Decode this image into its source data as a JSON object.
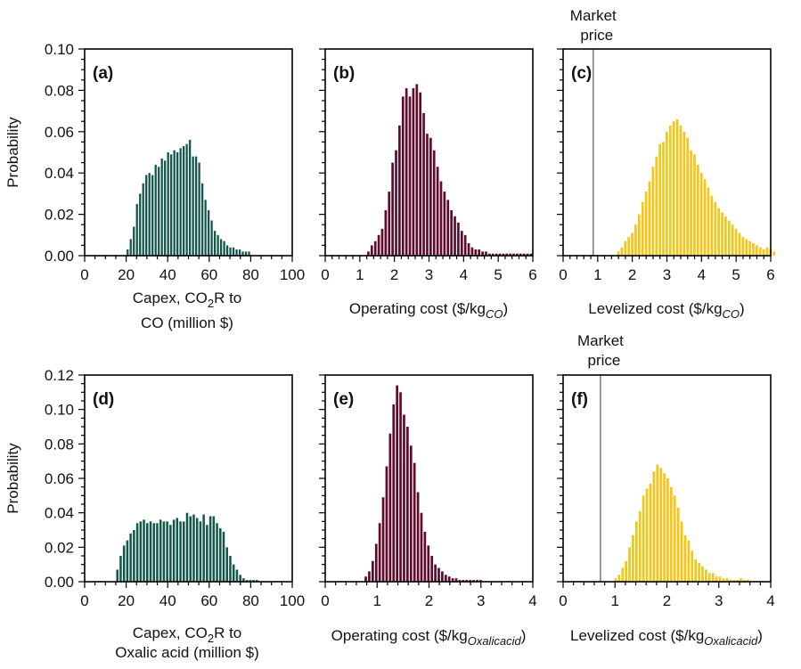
{
  "colors": {
    "capex": "#12584a",
    "opcost": "#5e0b2c",
    "levelized": "#f5c518",
    "market_line": "#7f7f7f",
    "axis": "#000000"
  },
  "chart_data": [
    {
      "type": "bar",
      "panel": "(a)",
      "xlabel_main": "Capex, CO",
      "xlabel_sub": "2",
      "xlabel_rest": "R to",
      "xlabel_line2": "CO (million $)",
      "ylabel": "Probability",
      "xlim": [
        0,
        100
      ],
      "ylim": [
        0,
        0.1
      ],
      "xticks": [
        "0",
        "20",
        "40",
        "60",
        "80",
        "100"
      ],
      "yticks": [
        "0.00",
        "0.02",
        "0.04",
        "0.06",
        "0.08",
        "0.10"
      ],
      "bin_start": 20,
      "bin_width": 1.5,
      "values": [
        0.003,
        0.008,
        0.014,
        0.025,
        0.03,
        0.035,
        0.039,
        0.04,
        0.039,
        0.044,
        0.043,
        0.047,
        0.046,
        0.05,
        0.049,
        0.051,
        0.05,
        0.052,
        0.053,
        0.054,
        0.056,
        0.048,
        0.048,
        0.045,
        0.035,
        0.027,
        0.022,
        0.017,
        0.012,
        0.01,
        0.008,
        0.007,
        0.005,
        0.004,
        0.004,
        0.003,
        0.003,
        0.002,
        0.002,
        0.002
      ]
    },
    {
      "type": "bar",
      "panel": "(b)",
      "xlabel_main": "Operating cost ($/kg",
      "xlabel_sub": "CO",
      "xlabel_rest": ")",
      "xlim": [
        0,
        6
      ],
      "ylim": [
        0,
        0.1
      ],
      "xticks": [
        "0",
        "1",
        "2",
        "3",
        "4",
        "5",
        "6"
      ],
      "bin_start": 1.2,
      "bin_width": 0.1,
      "values": [
        0.002,
        0.005,
        0.007,
        0.01,
        0.013,
        0.022,
        0.031,
        0.045,
        0.051,
        0.063,
        0.077,
        0.081,
        0.077,
        0.081,
        0.083,
        0.079,
        0.069,
        0.059,
        0.057,
        0.051,
        0.043,
        0.036,
        0.031,
        0.027,
        0.022,
        0.019,
        0.016,
        0.012,
        0.01,
        0.006,
        0.004,
        0.003,
        0.003,
        0.002,
        0.002,
        0.001,
        0.001,
        0.001,
        0.001,
        0.001,
        0.001,
        0.001,
        0.001,
        0.001,
        0.001,
        0.001,
        0.001,
        0.001
      ]
    },
    {
      "type": "bar",
      "panel": "(c)",
      "xlabel_main": "Levelized cost ($/kg",
      "xlabel_sub": "CO",
      "xlabel_rest": ")",
      "xlim": [
        0,
        6
      ],
      "ylim": [
        0,
        0.1
      ],
      "xticks": [
        "0",
        "1",
        "2",
        "3",
        "4",
        "5",
        "6"
      ],
      "market_price": 0.87,
      "market_label_line1": "Market",
      "market_label_line2": "price",
      "bin_start": 1.55,
      "bin_width": 0.1,
      "values": [
        0.002,
        0.004,
        0.007,
        0.009,
        0.011,
        0.015,
        0.02,
        0.026,
        0.031,
        0.036,
        0.043,
        0.048,
        0.054,
        0.055,
        0.06,
        0.063,
        0.065,
        0.066,
        0.063,
        0.06,
        0.057,
        0.051,
        0.049,
        0.044,
        0.04,
        0.037,
        0.033,
        0.029,
        0.026,
        0.023,
        0.021,
        0.019,
        0.017,
        0.015,
        0.013,
        0.011,
        0.009,
        0.008,
        0.007,
        0.006,
        0.005,
        0.004,
        0.003,
        0.004,
        0.003,
        0.002
      ]
    },
    {
      "type": "bar",
      "panel": "(d)",
      "xlabel_main": "Capex, CO",
      "xlabel_sub": "2",
      "xlabel_rest": "R to",
      "xlabel_line2": "Oxalic acid (million $)",
      "ylabel": "Probability",
      "xlim": [
        0,
        100
      ],
      "ylim": [
        0,
        0.12
      ],
      "xticks": [
        "0",
        "20",
        "40",
        "60",
        "80",
        "100"
      ],
      "yticks": [
        "0.00",
        "0.02",
        "0.04",
        "0.06",
        "0.08",
        "0.10",
        "0.12"
      ],
      "bin_start": 15,
      "bin_width": 1.6,
      "values": [
        0.007,
        0.015,
        0.021,
        0.024,
        0.028,
        0.03,
        0.034,
        0.035,
        0.036,
        0.034,
        0.035,
        0.034,
        0.034,
        0.036,
        0.035,
        0.035,
        0.033,
        0.036,
        0.037,
        0.035,
        0.035,
        0.04,
        0.038,
        0.039,
        0.037,
        0.035,
        0.039,
        0.033,
        0.038,
        0.038,
        0.034,
        0.031,
        0.029,
        0.02,
        0.015,
        0.01,
        0.007,
        0.004,
        0.002,
        0.001,
        0.001,
        0.001,
        0.001
      ]
    },
    {
      "type": "bar",
      "panel": "(e)",
      "xlabel_main": "Operating cost ($/kg",
      "xlabel_sub": "Oxalicacid",
      "xlabel_rest": ")",
      "xlim": [
        0,
        4
      ],
      "ylim": [
        0,
        0.12
      ],
      "xticks": [
        "0",
        "1",
        "2",
        "3",
        "4"
      ],
      "bin_start": 0.75,
      "bin_width": 0.067,
      "values": [
        0.003,
        0.006,
        0.012,
        0.022,
        0.034,
        0.049,
        0.067,
        0.086,
        0.103,
        0.114,
        0.11,
        0.097,
        0.09,
        0.079,
        0.069,
        0.052,
        0.04,
        0.029,
        0.021,
        0.015,
        0.01,
        0.008,
        0.006,
        0.004,
        0.003,
        0.002,
        0.002,
        0.001,
        0.001,
        0.001,
        0.001,
        0.001,
        0.001,
        0.001
      ]
    },
    {
      "type": "bar",
      "panel": "(f)",
      "xlabel_main": "Levelized cost ($/kg",
      "xlabel_sub": "Oxalicacid",
      "xlabel_rest": ")",
      "xlim": [
        0,
        4
      ],
      "ylim": [
        0,
        0.12
      ],
      "xticks": [
        "0",
        "1",
        "2",
        "3",
        "4"
      ],
      "market_price": 0.72,
      "market_label_line1": "Market",
      "market_label_line2": "price",
      "bin_start": 0.98,
      "bin_width": 0.067,
      "values": [
        0.002,
        0.004,
        0.008,
        0.012,
        0.02,
        0.027,
        0.035,
        0.041,
        0.05,
        0.054,
        0.057,
        0.064,
        0.068,
        0.066,
        0.063,
        0.06,
        0.055,
        0.05,
        0.043,
        0.035,
        0.027,
        0.024,
        0.018,
        0.013,
        0.011,
        0.009,
        0.007,
        0.005,
        0.005,
        0.003,
        0.003,
        0.002,
        0.002,
        0.001,
        0.001,
        0.001,
        0.002,
        0.001,
        0.001
      ]
    }
  ]
}
